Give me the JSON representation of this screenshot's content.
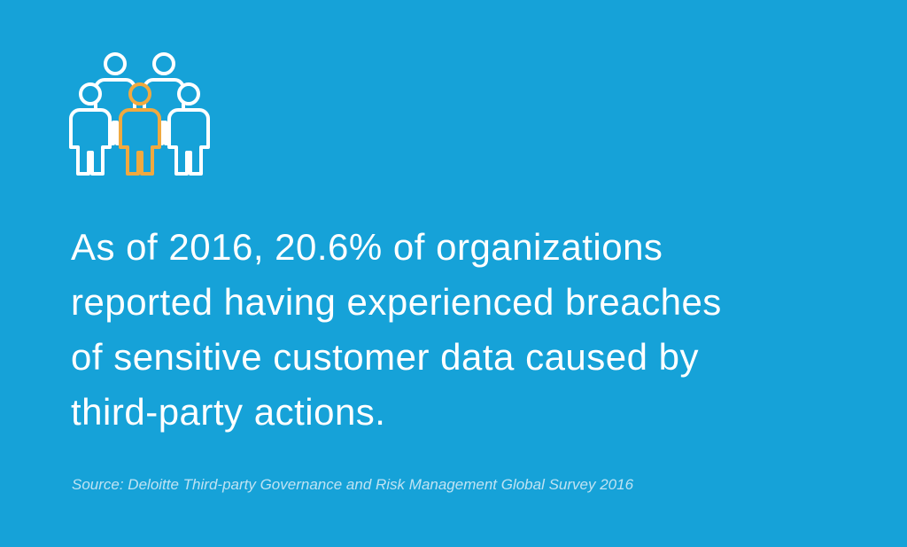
{
  "statement": {
    "lines": [
      "As of 2016, 20.6% of organizations",
      "reported having experienced breaches",
      "of sensitive customer data caused by",
      "third-party actions."
    ]
  },
  "source": "Source: Deloitte Third-party Governance and Risk Management Global Survey 2016"
}
